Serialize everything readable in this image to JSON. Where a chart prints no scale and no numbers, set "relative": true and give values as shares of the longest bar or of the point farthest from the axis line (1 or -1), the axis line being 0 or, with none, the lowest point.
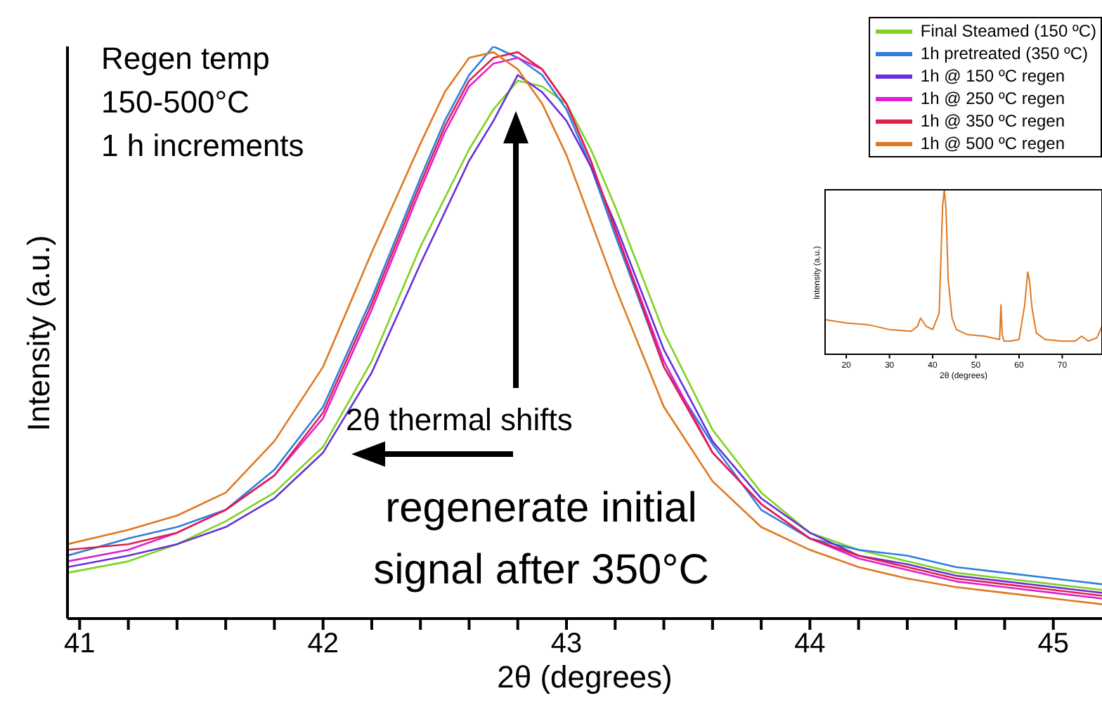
{
  "chart_data": [
    {
      "type": "line",
      "xlabel": "2θ (degrees)",
      "ylabel": "Intensity (a.u.)",
      "relative": true,
      "tick_labels": "x",
      "legend": "top right",
      "xlim": [
        40.95,
        45.2
      ],
      "xticks": [
        41,
        {
          "value": 41.2,
          "label": null
        },
        {
          "value": 41.4,
          "label": null
        },
        {
          "value": 41.6,
          "label": null
        },
        {
          "value": 41.8,
          "label": null
        },
        42,
        {
          "value": 42.2,
          "label": null
        },
        {
          "value": 42.4,
          "label": null
        },
        {
          "value": 42.6,
          "label": null
        },
        {
          "value": 42.8,
          "label": null
        },
        43,
        {
          "value": 43.2,
          "label": null
        },
        {
          "value": 43.4,
          "label": null
        },
        {
          "value": 43.6,
          "label": null
        },
        {
          "value": 43.8,
          "label": null
        },
        44,
        {
          "value": 44.2,
          "label": null
        },
        {
          "value": 44.4,
          "label": null
        },
        {
          "value": 44.6,
          "label": null
        },
        {
          "value": 44.8,
          "label": null
        },
        45
      ],
      "annotations": [
        "Regen temp",
        "150-500°C",
        "1 h increments",
        "2θ thermal shifts",
        "regenerate initial",
        "signal after 350°C"
      ],
      "series": [
        {
          "name": "Final Steamed (150 ºC)",
          "color": "#7fd320",
          "x": [
            40.95,
            41.2,
            41.4,
            41.6,
            41.8,
            42.0,
            42.2,
            42.4,
            42.6,
            42.7,
            42.8,
            42.9,
            43.0,
            43.1,
            43.2,
            43.4,
            43.6,
            43.8,
            44.0,
            44.2,
            44.4,
            44.6,
            44.8,
            45.0,
            45.2
          ],
          "values": [
            0.08,
            0.1,
            0.13,
            0.17,
            0.22,
            0.3,
            0.45,
            0.65,
            0.82,
            0.89,
            0.94,
            0.93,
            0.9,
            0.82,
            0.72,
            0.5,
            0.33,
            0.22,
            0.15,
            0.12,
            0.1,
            0.08,
            0.07,
            0.06,
            0.05
          ]
        },
        {
          "name": "1h pretreated (350 ºC)",
          "color": "#2f7fe0",
          "x": [
            40.95,
            41.2,
            41.4,
            41.6,
            41.8,
            42.0,
            42.2,
            42.4,
            42.5,
            42.6,
            42.7,
            42.8,
            42.9,
            43.0,
            43.1,
            43.2,
            43.4,
            43.6,
            43.8,
            44.0,
            44.2,
            44.4,
            44.6,
            44.8,
            45.0,
            45.2
          ],
          "values": [
            0.11,
            0.14,
            0.16,
            0.19,
            0.26,
            0.37,
            0.56,
            0.77,
            0.87,
            0.95,
            1.0,
            0.98,
            0.95,
            0.89,
            0.79,
            0.67,
            0.44,
            0.305,
            0.19,
            0.14,
            0.12,
            0.11,
            0.09,
            0.08,
            0.07,
            0.06
          ]
        },
        {
          "name": "1h @ 150 ºC regen",
          "color": "#6a2fd8",
          "x": [
            40.95,
            41.2,
            41.4,
            41.6,
            41.8,
            42.0,
            42.2,
            42.4,
            42.6,
            42.7,
            42.8,
            42.9,
            43.0,
            43.1,
            43.2,
            43.4,
            43.6,
            43.8,
            44.0,
            44.2,
            44.4,
            44.6,
            44.8,
            45.0,
            45.2
          ],
          "values": [
            0.09,
            0.11,
            0.13,
            0.16,
            0.21,
            0.29,
            0.43,
            0.62,
            0.8,
            0.87,
            0.95,
            0.92,
            0.87,
            0.79,
            0.69,
            0.47,
            0.31,
            0.21,
            0.15,
            0.11,
            0.095,
            0.075,
            0.065,
            0.055,
            0.045
          ]
        },
        {
          "name": "1h @ 250 ºC regen",
          "color": "#e020d0",
          "x": [
            40.95,
            41.2,
            41.4,
            41.6,
            41.8,
            42.0,
            42.2,
            42.4,
            42.5,
            42.6,
            42.7,
            42.8,
            42.9,
            43.0,
            43.1,
            43.2,
            43.4,
            43.6,
            43.8,
            44.0,
            44.2,
            44.4,
            44.6,
            44.8,
            45.0,
            45.2
          ],
          "values": [
            0.1,
            0.12,
            0.15,
            0.19,
            0.25,
            0.35,
            0.54,
            0.75,
            0.85,
            0.93,
            0.97,
            0.98,
            0.96,
            0.9,
            0.8,
            0.68,
            0.45,
            0.29,
            0.2,
            0.14,
            0.105,
            0.085,
            0.065,
            0.055,
            0.045,
            0.035
          ]
        },
        {
          "name": "1h @ 350 ºC regen",
          "color": "#e0204a",
          "x": [
            40.95,
            41.2,
            41.4,
            41.6,
            41.8,
            42.0,
            42.2,
            42.4,
            42.5,
            42.6,
            42.7,
            42.8,
            42.9,
            43.0,
            43.1,
            43.2,
            43.4,
            43.6,
            43.8,
            44.0,
            44.2,
            44.4,
            44.6,
            44.8,
            45.0,
            45.2
          ],
          "values": [
            0.12,
            0.13,
            0.15,
            0.19,
            0.25,
            0.36,
            0.55,
            0.76,
            0.86,
            0.94,
            0.98,
            0.99,
            0.96,
            0.9,
            0.8,
            0.68,
            0.44,
            0.29,
            0.2,
            0.14,
            0.11,
            0.09,
            0.07,
            0.06,
            0.05,
            0.04
          ]
        },
        {
          "name": "1h @ 500 ºC regen",
          "color": "#e07820",
          "x": [
            40.95,
            41.2,
            41.4,
            41.6,
            41.8,
            42.0,
            42.2,
            42.4,
            42.5,
            42.6,
            42.7,
            42.8,
            42.9,
            43.0,
            43.2,
            43.4,
            43.6,
            43.8,
            44.0,
            44.2,
            44.4,
            44.6,
            44.8,
            45.0,
            45.2
          ],
          "values": [
            0.13,
            0.155,
            0.18,
            0.22,
            0.31,
            0.44,
            0.64,
            0.83,
            0.92,
            0.98,
            0.99,
            0.96,
            0.9,
            0.81,
            0.58,
            0.37,
            0.24,
            0.16,
            0.12,
            0.09,
            0.07,
            0.055,
            0.045,
            0.035,
            0.025
          ]
        }
      ]
    },
    {
      "type": "line",
      "xlabel": "2θ (degrees)",
      "ylabel": "Intensity (a.u.)",
      "relative": true,
      "tick_labels": "x",
      "xlim": [
        15.1,
        79.2
      ],
      "xticks": [
        20,
        30,
        40,
        50,
        60,
        70
      ],
      "series": [
        {
          "color": "#e07820",
          "x": [
            15.1,
            20,
            25,
            30,
            35,
            36.5,
            37.2,
            38.5,
            40,
            41.5,
            42.3,
            42.7,
            43.1,
            43.6,
            44.5,
            45.5,
            48,
            52,
            55.5,
            55.8,
            56.1,
            56.5,
            58,
            60,
            61.3,
            62,
            62.4,
            63,
            64,
            66,
            70,
            73,
            74.5,
            76,
            78,
            79.2
          ],
          "values": [
            0.21,
            0.19,
            0.18,
            0.15,
            0.14,
            0.17,
            0.22,
            0.17,
            0.15,
            0.25,
            0.9,
            1.0,
            0.88,
            0.45,
            0.22,
            0.15,
            0.12,
            0.11,
            0.09,
            0.3,
            0.12,
            0.08,
            0.08,
            0.09,
            0.3,
            0.5,
            0.45,
            0.28,
            0.13,
            0.09,
            0.08,
            0.08,
            0.11,
            0.08,
            0.1,
            0.17
          ]
        }
      ]
    }
  ]
}
